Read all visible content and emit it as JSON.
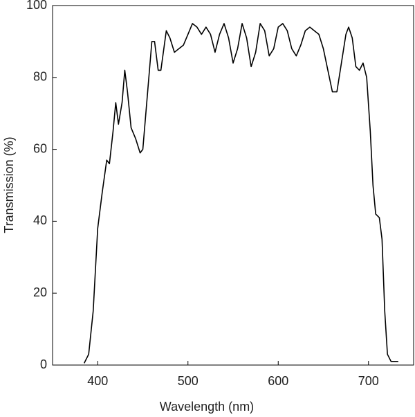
{
  "chart_data": {
    "type": "line",
    "xlabel": "Wavelength (nm)",
    "ylabel": "Transmission (%)",
    "xlim": [
      350,
      750
    ],
    "ylim": [
      0,
      100
    ],
    "xticks": [
      400,
      500,
      600,
      700
    ],
    "yticks": [
      0,
      20,
      40,
      60,
      80,
      100
    ],
    "grid": false,
    "series": [
      {
        "color": "#000000",
        "x": [
          385,
          390,
          395,
          400,
          405,
          410,
          413,
          417,
          420,
          423,
          427,
          430,
          433,
          437,
          442,
          447,
          450,
          455,
          460,
          463,
          467,
          470,
          476,
          480,
          485,
          490,
          495,
          500,
          505,
          510,
          515,
          520,
          525,
          530,
          535,
          540,
          545,
          550,
          555,
          560,
          565,
          570,
          575,
          580,
          585,
          590,
          595,
          600,
          605,
          610,
          615,
          620,
          625,
          630,
          635,
          640,
          645,
          650,
          655,
          660,
          665,
          670,
          675,
          678,
          682,
          686,
          690,
          694,
          698,
          702,
          705,
          708,
          712,
          715,
          718,
          721,
          725,
          730,
          733
        ],
        "values": [
          0.5,
          3,
          15,
          38,
          48,
          57,
          56,
          65,
          73,
          67,
          73,
          82,
          76,
          66,
          63,
          59,
          60,
          75,
          90,
          90,
          82,
          82,
          93,
          91,
          87,
          88,
          89,
          92,
          95,
          94,
          92,
          94,
          92,
          87,
          92,
          95,
          91,
          84,
          88,
          95,
          91,
          83,
          87,
          95,
          93,
          86,
          88,
          94,
          95,
          93,
          88,
          86,
          89,
          93,
          94,
          93,
          92,
          88,
          82,
          76,
          76,
          84,
          92,
          94,
          91,
          83,
          82,
          84,
          80,
          65,
          50,
          42,
          41,
          35,
          15,
          3,
          1,
          1,
          1
        ]
      }
    ]
  }
}
